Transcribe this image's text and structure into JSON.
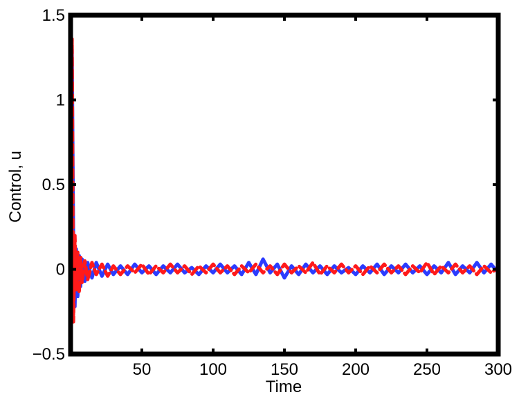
{
  "chart_data": {
    "type": "line",
    "title": "",
    "xlabel": "Time",
    "ylabel": "Control, u",
    "xlim": [
      0,
      300
    ],
    "ylim": [
      -0.5,
      1.5
    ],
    "x_ticks": [
      50,
      100,
      150,
      200,
      250,
      300
    ],
    "x_tick_labels": [
      "50",
      "100",
      "150",
      "200",
      "250",
      "300"
    ],
    "y_ticks": [
      -0.5,
      0,
      0.5,
      1,
      1.5
    ],
    "y_tick_labels": [
      "−0.5",
      "0",
      "0.5",
      "1",
      "1.5"
    ],
    "grid": false,
    "legend": "none",
    "series": [
      {
        "color": "#2b3cff",
        "style": "solid",
        "x": [
          0,
          1,
          2,
          3,
          4,
          5,
          6,
          7,
          8,
          10,
          12,
          15,
          18,
          22,
          26,
          30,
          35,
          40,
          45,
          50,
          55,
          60,
          65,
          70,
          75,
          80,
          85,
          90,
          95,
          100,
          105,
          110,
          115,
          120,
          125,
          130,
          135,
          140,
          145,
          150,
          155,
          160,
          165,
          170,
          175,
          180,
          185,
          190,
          195,
          200,
          205,
          210,
          215,
          220,
          225,
          230,
          235,
          240,
          245,
          250,
          255,
          260,
          265,
          270,
          275,
          280,
          285,
          290,
          295,
          300
        ],
        "y": [
          0,
          1.3,
          0.18,
          -0.22,
          0.12,
          -0.16,
          0.08,
          -0.1,
          0.06,
          -0.07,
          0.04,
          -0.05,
          0.04,
          -0.04,
          0.03,
          -0.03,
          0.02,
          -0.03,
          0.03,
          -0.02,
          0.02,
          -0.03,
          0.02,
          -0.02,
          0.03,
          -0.02,
          0.01,
          -0.03,
          0.02,
          -0.02,
          0.03,
          -0.02,
          0.02,
          -0.03,
          0.04,
          -0.03,
          0.06,
          -0.02,
          0.03,
          -0.05,
          0.02,
          -0.03,
          0.03,
          -0.02,
          0.02,
          -0.03,
          0.02,
          -0.02,
          0.01,
          -0.03,
          0.02,
          -0.02,
          0.03,
          -0.03,
          0.02,
          -0.02,
          0.03,
          -0.02,
          0.02,
          -0.03,
          0.02,
          -0.02,
          0.04,
          -0.03,
          0.02,
          -0.02,
          0.04,
          -0.02,
          0.03,
          -0.02
        ]
      },
      {
        "color": "#ff1a1a",
        "style": "dashed",
        "x": [
          0,
          1,
          2,
          3,
          4,
          5,
          6,
          7,
          8,
          10,
          12,
          15,
          18,
          22,
          26,
          30,
          35,
          40,
          45,
          50,
          55,
          60,
          65,
          70,
          75,
          80,
          85,
          90,
          95,
          100,
          105,
          110,
          115,
          120,
          125,
          130,
          135,
          140,
          145,
          150,
          155,
          160,
          165,
          170,
          175,
          180,
          185,
          190,
          195,
          200,
          205,
          210,
          215,
          220,
          225,
          230,
          235,
          240,
          245,
          250,
          255,
          260,
          265,
          270,
          275,
          280,
          285,
          290,
          295,
          300
        ],
        "y": [
          0,
          1.36,
          -0.31,
          0.2,
          -0.12,
          0.1,
          -0.14,
          0.07,
          -0.08,
          0.05,
          -0.06,
          0.04,
          -0.03,
          0.03,
          -0.04,
          0.02,
          -0.03,
          0.02,
          -0.02,
          0.03,
          -0.03,
          0.02,
          -0.02,
          0.03,
          -0.02,
          0.02,
          -0.03,
          0.02,
          -0.02,
          0.03,
          -0.02,
          0.02,
          -0.03,
          0.02,
          -0.02,
          0.03,
          -0.02,
          0.02,
          -0.03,
          0.03,
          -0.02,
          0.02,
          -0.02,
          0.04,
          -0.03,
          0.02,
          -0.02,
          0.03,
          -0.02,
          0.02,
          -0.03,
          0.02,
          -0.02,
          0.03,
          -0.02,
          0.02,
          -0.03,
          0.02,
          -0.02,
          0.04,
          -0.03,
          0.02,
          -0.02,
          0.03,
          -0.02,
          0.02,
          -0.03,
          0.02,
          -0.02,
          0.01
        ]
      }
    ]
  }
}
